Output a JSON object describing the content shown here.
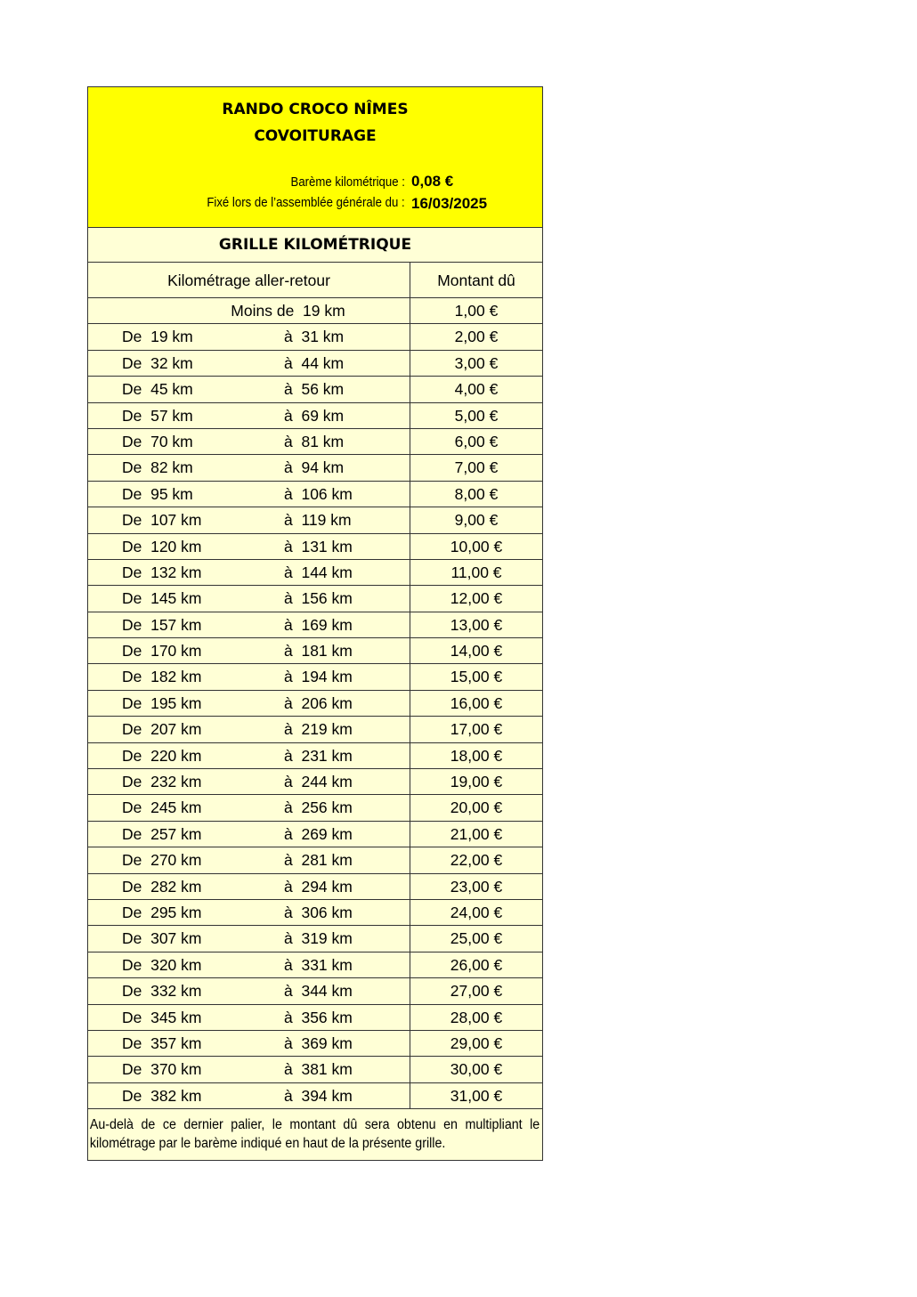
{
  "header": {
    "title": "RANDO CROCO NÎMES",
    "subtitle": "COVOITURAGE",
    "bareme_label": "Barème kilométrique :",
    "bareme_value": "0,08 €",
    "date_label": "Fixé lors de l’assemblée générale du :",
    "date_value": "16/03/2025",
    "highlight_color": "#ffff00"
  },
  "grille": {
    "title": "GRILLE KILOMÉTRIQUE",
    "col_km": "Kilométrage aller-retour",
    "col_amount": "Montant dû",
    "first_row": {
      "label": "Moins de  19 km",
      "amount": "1,00 €"
    },
    "rows": [
      {
        "from": "De  19 km",
        "to": "à  31 km",
        "amount": "2,00 €"
      },
      {
        "from": "De  32 km",
        "to": "à  44 km",
        "amount": "3,00 €"
      },
      {
        "from": "De  45 km",
        "to": "à  56 km",
        "amount": "4,00 €"
      },
      {
        "from": "De  57 km",
        "to": "à  69 km",
        "amount": "5,00 €"
      },
      {
        "from": "De  70 km",
        "to": "à  81 km",
        "amount": "6,00 €"
      },
      {
        "from": "De  82 km",
        "to": "à  94 km",
        "amount": "7,00 €"
      },
      {
        "from": "De  95 km",
        "to": "à  106 km",
        "amount": "8,00 €"
      },
      {
        "from": "De  107 km",
        "to": "à  119 km",
        "amount": "9,00 €"
      },
      {
        "from": "De  120 km",
        "to": "à  131 km",
        "amount": "10,00 €"
      },
      {
        "from": "De  132 km",
        "to": "à  144 km",
        "amount": "11,00 €"
      },
      {
        "from": "De  145 km",
        "to": "à  156 km",
        "amount": "12,00 €"
      },
      {
        "from": "De  157 km",
        "to": "à  169 km",
        "amount": "13,00 €"
      },
      {
        "from": "De  170 km",
        "to": "à  181 km",
        "amount": "14,00 €"
      },
      {
        "from": "De  182 km",
        "to": "à  194 km",
        "amount": "15,00 €"
      },
      {
        "from": "De  195 km",
        "to": "à  206 km",
        "amount": "16,00 €"
      },
      {
        "from": "De  207 km",
        "to": "à  219 km",
        "amount": "17,00 €"
      },
      {
        "from": "De  220 km",
        "to": "à  231 km",
        "amount": "18,00 €"
      },
      {
        "from": "De  232 km",
        "to": "à  244 km",
        "amount": "19,00 €"
      },
      {
        "from": "De  245 km",
        "to": "à  256 km",
        "amount": "20,00 €"
      },
      {
        "from": "De  257 km",
        "to": "à  269 km",
        "amount": "21,00 €"
      },
      {
        "from": "De  270 km",
        "to": "à  281 km",
        "amount": "22,00 €"
      },
      {
        "from": "De  282 km",
        "to": "à  294 km",
        "amount": "23,00 €"
      },
      {
        "from": "De  295 km",
        "to": "à  306 km",
        "amount": "24,00 €"
      },
      {
        "from": "De  307 km",
        "to": "à  319 km",
        "amount": "25,00 €"
      },
      {
        "from": "De  320 km",
        "to": "à  331 km",
        "amount": "26,00 €"
      },
      {
        "from": "De  332 km",
        "to": "à  344 km",
        "amount": "27,00 €"
      },
      {
        "from": "De  345 km",
        "to": "à  356 km",
        "amount": "28,00 €"
      },
      {
        "from": "De  357 km",
        "to": "à  369 km",
        "amount": "29,00 €"
      },
      {
        "from": "De  370 km",
        "to": "à  381 km",
        "amount": "30,00 €"
      },
      {
        "from": "De  382 km",
        "to": "à  394 km",
        "amount": "31,00 €"
      }
    ]
  },
  "footer": {
    "note": "Au-delà de ce dernier palier, le montant dû sera obtenu en multipliant le kilométrage par le barème indiqué en haut de la présente grille."
  }
}
